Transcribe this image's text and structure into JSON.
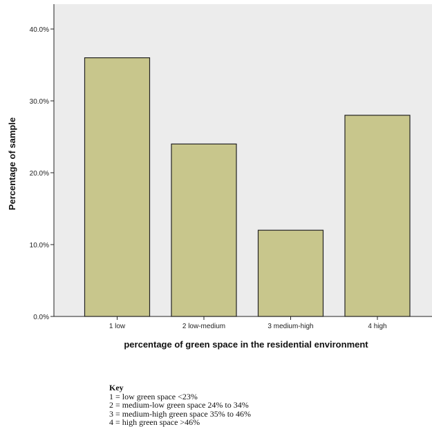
{
  "chart_data": {
    "type": "bar",
    "categories": [
      "1 low",
      "2 low-medium",
      "3 medium-high",
      "4 high"
    ],
    "values": [
      36,
      24,
      12,
      28
    ],
    "ylim": [
      0,
      40
    ],
    "yticks": [
      "0.0%",
      "10.0%",
      "20.0%",
      "30.0%",
      "40.0%"
    ],
    "ytick_values": [
      0,
      10,
      20,
      30,
      40
    ],
    "xlabel": "percentage of green space in the residential environment",
    "ylabel": "Percentage of sample",
    "bar_color": "#c8c68c",
    "plot_background": "#ececec",
    "grid": false
  },
  "key": {
    "title": "Key",
    "items": [
      "1 = low green space <23%",
      "2 = medium-low green space 24% to 34%",
      "3 = medium-high green space 35% to 46%",
      "4 = high green space >46%"
    ]
  }
}
